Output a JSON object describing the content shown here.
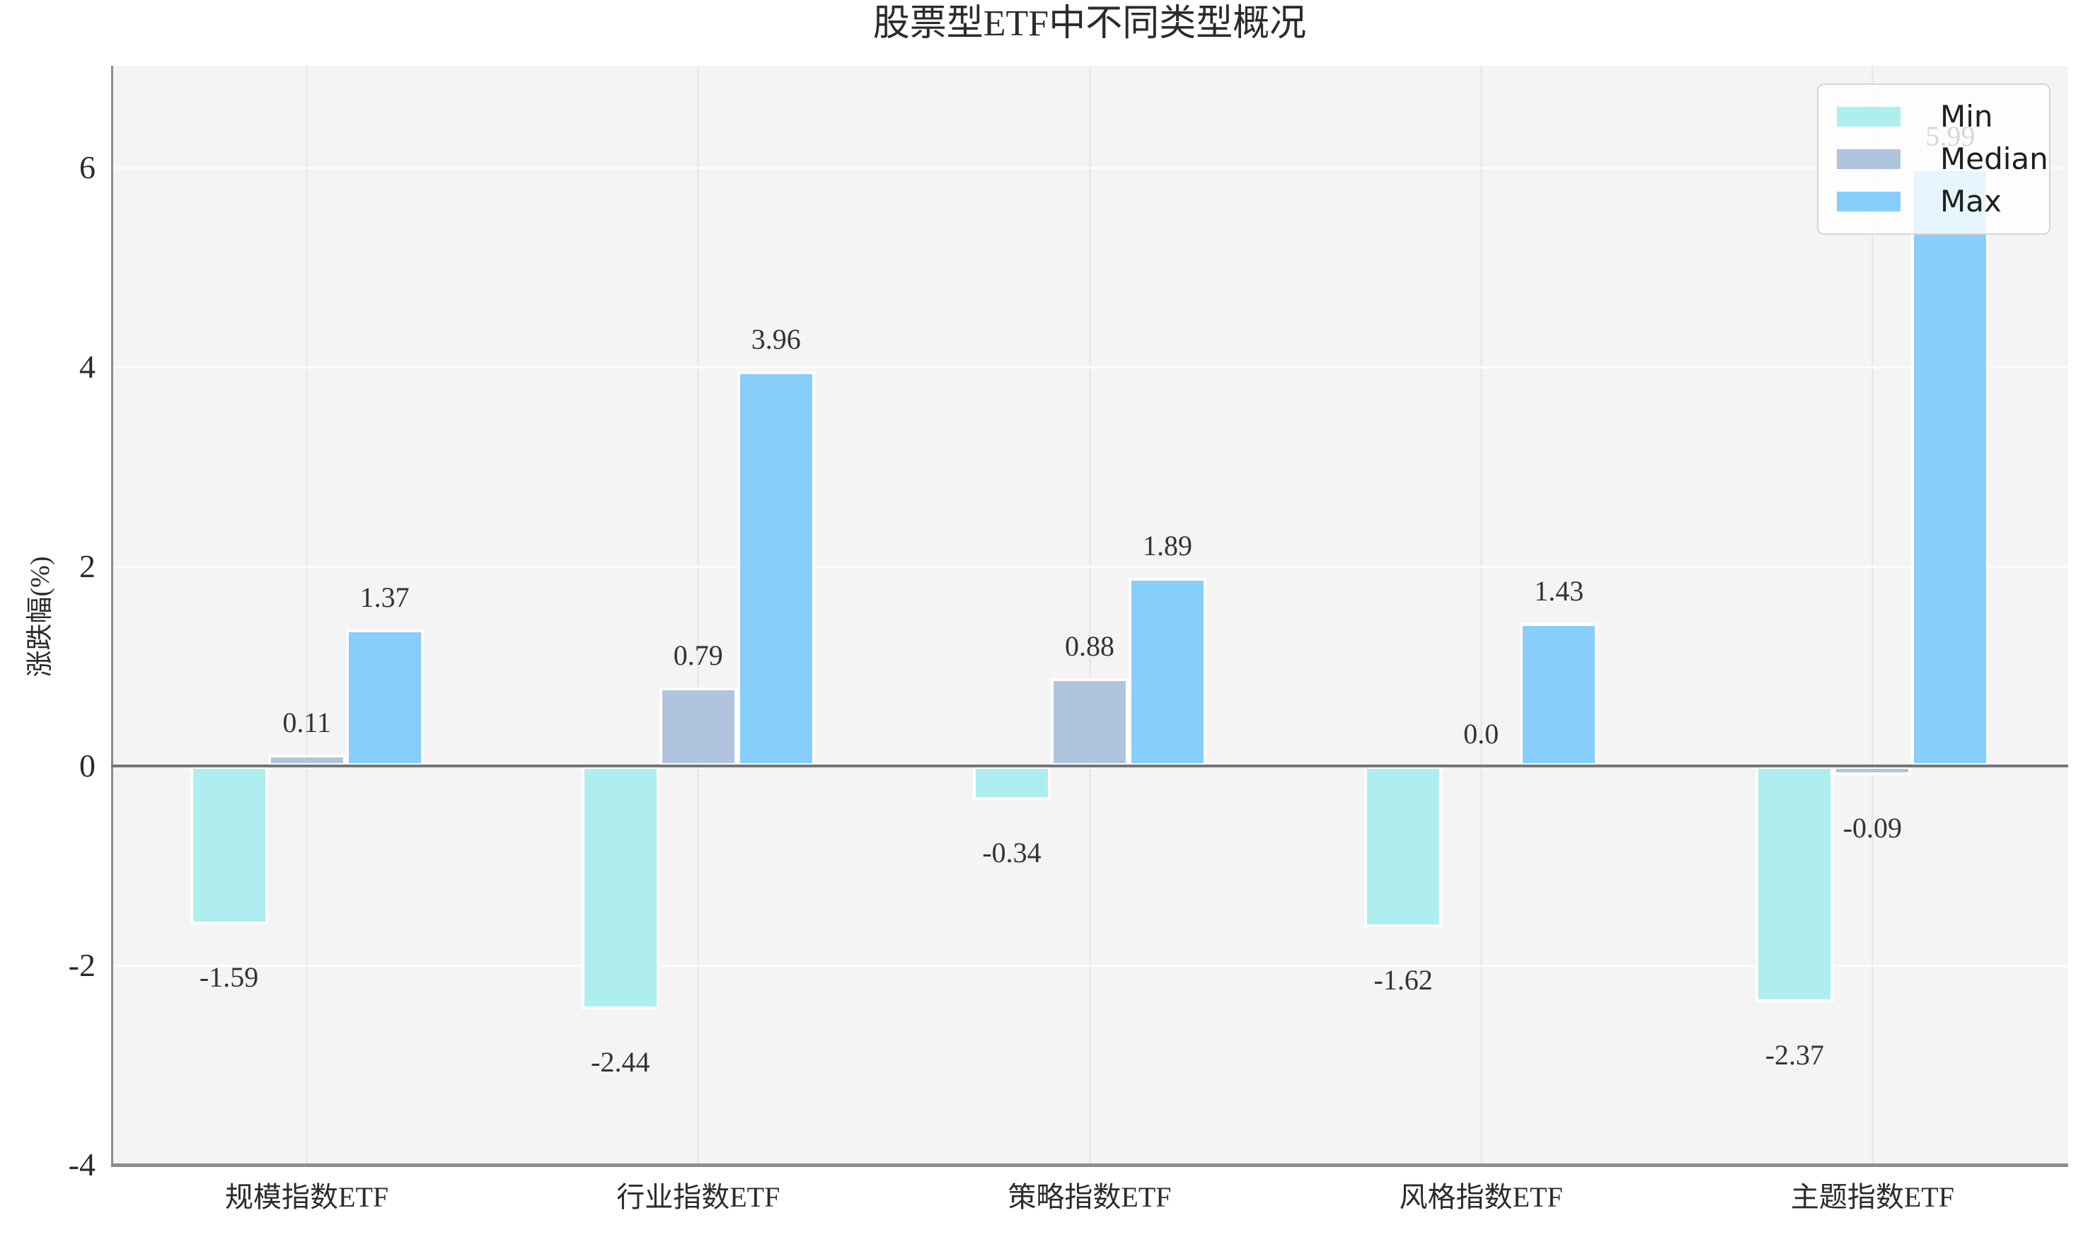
{
  "chart_data": {
    "type": "bar",
    "title": "股票型ETF中不同类型概况",
    "ylabel": "涨跌幅(%)",
    "xlabel": "",
    "categories": [
      "规模指数ETF",
      "行业指数ETF",
      "策略指数ETF",
      "风格指数ETF",
      "主题指数ETF"
    ],
    "series": [
      {
        "name": "Min",
        "color": "#AFEEEE",
        "values": [
          -1.59,
          -2.44,
          -0.34,
          -1.62,
          -2.37
        ],
        "labels": [
          "-1.59",
          "-2.44",
          "-0.34",
          "-1.62",
          "-2.37"
        ]
      },
      {
        "name": "Median",
        "color": "#B0C4DE",
        "values": [
          0.11,
          0.79,
          0.88,
          0.0,
          -0.09
        ],
        "labels": [
          "0.11",
          "0.79",
          "0.88",
          "0.0",
          "-0.09"
        ]
      },
      {
        "name": "Max",
        "color": "#87CEFA",
        "values": [
          1.37,
          3.96,
          1.89,
          1.43,
          5.99
        ],
        "labels": [
          "1.37",
          "3.96",
          "1.89",
          "1.43",
          "5.99"
        ]
      }
    ],
    "yticks": [
      -4,
      -2,
      0,
      2,
      4,
      6
    ],
    "ytick_labels": [
      "-4",
      "-2",
      "0",
      "2",
      "4",
      "6"
    ],
    "ylim": [
      -4.02,
      7.02
    ],
    "grid": true,
    "legend_position": "upper right",
    "legend_entries": [
      "Min",
      "Median",
      "Max"
    ]
  }
}
